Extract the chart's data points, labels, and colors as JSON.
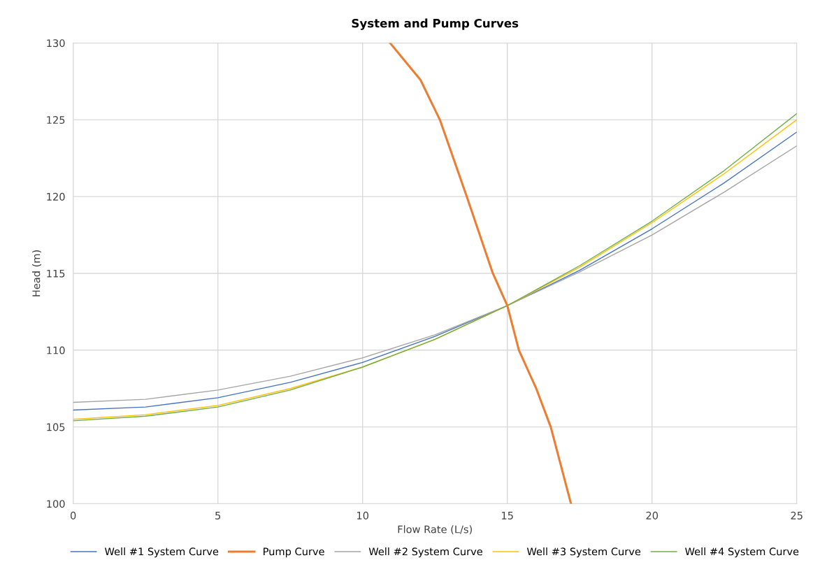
{
  "chart_data": {
    "type": "line",
    "title": "System and Pump Curves",
    "xlabel": "Flow Rate (L/s)",
    "ylabel": "Head (m)",
    "xlim": [
      0,
      25
    ],
    "xticks": [
      0,
      5,
      10,
      15,
      20,
      25
    ],
    "ylim": [
      100,
      130
    ],
    "yticks": [
      100,
      105,
      110,
      115,
      120,
      125,
      130
    ],
    "grid": true,
    "legend": "bottom",
    "marker": "none",
    "line_style": "solid",
    "series": [
      {
        "name": "Well #1 System Curve",
        "color": "#4472c4",
        "x": [
          0,
          2.5,
          5,
          7.5,
          10,
          12.5,
          15,
          17.5,
          20,
          22.5,
          25
        ],
        "values": [
          106.1,
          106.3,
          106.9,
          107.9,
          109.2,
          110.9,
          112.9,
          115.2,
          117.9,
          120.9,
          124.2
        ]
      },
      {
        "name": "Pump Curve",
        "color": "#ed7d31",
        "x": [
          10.95,
          12.0,
          12.67,
          13.6,
          14.5,
          15.0,
          15.4,
          16.0,
          16.5,
          17.2
        ],
        "values": [
          130,
          127.6,
          125,
          120,
          115,
          112.9,
          110,
          107.5,
          105,
          100
        ]
      },
      {
        "name": "Well #2 System Curve",
        "color": "#a5a5a5",
        "x": [
          0,
          2.5,
          5,
          7.5,
          10,
          12.5,
          15,
          17.5,
          20,
          22.5,
          25
        ],
        "values": [
          106.6,
          106.8,
          107.4,
          108.3,
          109.5,
          111.0,
          112.9,
          115.1,
          117.5,
          120.3,
          123.3
        ]
      },
      {
        "name": "Well #3 System Curve",
        "color": "#ffc000",
        "x": [
          0,
          2.5,
          5,
          7.5,
          10,
          12.5,
          15,
          17.5,
          20,
          22.5,
          25
        ],
        "values": [
          105.5,
          105.8,
          106.4,
          107.5,
          108.9,
          110.7,
          112.9,
          115.4,
          118.3,
          121.5,
          125.0
        ]
      },
      {
        "name": "Well #4 System Curve",
        "color": "#70ad47",
        "x": [
          0,
          2.5,
          5,
          7.5,
          10,
          12.5,
          15,
          17.5,
          20,
          22.5,
          25
        ],
        "values": [
          105.4,
          105.7,
          106.3,
          107.4,
          108.9,
          110.7,
          112.9,
          115.5,
          118.4,
          121.7,
          125.4
        ]
      }
    ]
  }
}
